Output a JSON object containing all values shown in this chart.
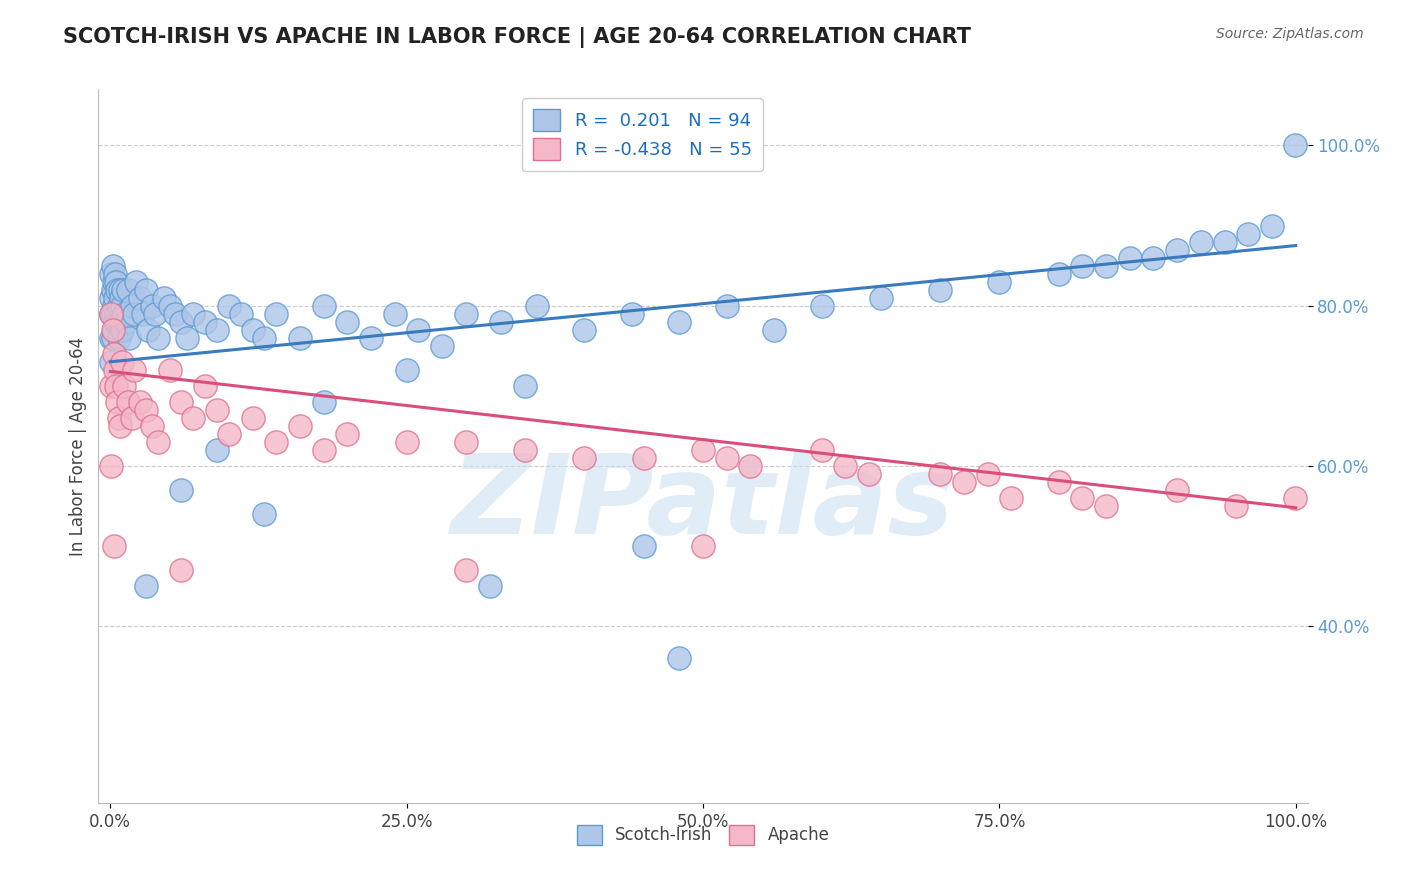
{
  "title": "SCOTCH-IRISH VS APACHE IN LABOR FORCE | AGE 20-64 CORRELATION CHART",
  "source": "Source: ZipAtlas.com",
  "ylabel": "In Labor Force | Age 20-64",
  "xlim": [
    -0.01,
    1.01
  ],
  "ylim": [
    0.18,
    1.07
  ],
  "xticks": [
    0.0,
    0.25,
    0.5,
    0.75,
    1.0
  ],
  "xticklabels": [
    "0.0%",
    "25.0%",
    "50.0%",
    "75.0%",
    "100.0%"
  ],
  "yticks": [
    0.4,
    0.6,
    0.8,
    1.0
  ],
  "yticklabels": [
    "40.0%",
    "60.0%",
    "80.0%",
    "100.0%"
  ],
  "blue_R": 0.201,
  "blue_N": 94,
  "pink_R": -0.438,
  "pink_N": 55,
  "blue_color": "#aec6e8",
  "blue_edge": "#5b9bd5",
  "pink_color": "#f4b8c8",
  "pink_edge": "#e07090",
  "trend_blue": "#3a7abf",
  "trend_pink": "#d94f7a",
  "watermark": "ZIPatlas",
  "watermark_color": "#c8dff0",
  "blue_x": [
    0.001,
    0.001,
    0.001,
    0.001,
    0.001,
    0.002,
    0.002,
    0.002,
    0.002,
    0.003,
    0.003,
    0.003,
    0.004,
    0.004,
    0.004,
    0.005,
    0.005,
    0.006,
    0.006,
    0.007,
    0.007,
    0.008,
    0.008,
    0.009,
    0.01,
    0.01,
    0.011,
    0.012,
    0.013,
    0.015,
    0.016,
    0.018,
    0.02,
    0.022,
    0.025,
    0.028,
    0.03,
    0.032,
    0.035,
    0.038,
    0.04,
    0.045,
    0.05,
    0.055,
    0.06,
    0.065,
    0.07,
    0.08,
    0.09,
    0.1,
    0.11,
    0.12,
    0.13,
    0.14,
    0.16,
    0.18,
    0.2,
    0.22,
    0.24,
    0.26,
    0.28,
    0.3,
    0.33,
    0.36,
    0.4,
    0.44,
    0.48,
    0.52,
    0.56,
    0.6,
    0.65,
    0.7,
    0.75,
    0.8,
    0.82,
    0.84,
    0.86,
    0.88,
    0.9,
    0.92,
    0.94,
    0.96,
    0.98,
    0.999,
    0.18,
    0.25,
    0.35,
    0.45,
    0.48,
    0.03,
    0.06,
    0.13,
    0.09,
    0.32
  ],
  "blue_y": [
    0.84,
    0.81,
    0.79,
    0.76,
    0.73,
    0.85,
    0.82,
    0.79,
    0.76,
    0.83,
    0.8,
    0.77,
    0.84,
    0.81,
    0.78,
    0.83,
    0.79,
    0.82,
    0.78,
    0.8,
    0.76,
    0.82,
    0.78,
    0.81,
    0.8,
    0.77,
    0.82,
    0.79,
    0.78,
    0.82,
    0.76,
    0.8,
    0.79,
    0.83,
    0.81,
    0.79,
    0.82,
    0.77,
    0.8,
    0.79,
    0.76,
    0.81,
    0.8,
    0.79,
    0.78,
    0.76,
    0.79,
    0.78,
    0.77,
    0.8,
    0.79,
    0.77,
    0.76,
    0.79,
    0.76,
    0.8,
    0.78,
    0.76,
    0.79,
    0.77,
    0.75,
    0.79,
    0.78,
    0.8,
    0.77,
    0.79,
    0.78,
    0.8,
    0.77,
    0.8,
    0.81,
    0.82,
    0.83,
    0.84,
    0.85,
    0.85,
    0.86,
    0.86,
    0.87,
    0.88,
    0.88,
    0.89,
    0.9,
    1.0,
    0.68,
    0.72,
    0.7,
    0.5,
    0.36,
    0.45,
    0.57,
    0.54,
    0.62,
    0.45
  ],
  "pink_x": [
    0.001,
    0.001,
    0.002,
    0.003,
    0.004,
    0.005,
    0.006,
    0.007,
    0.008,
    0.01,
    0.012,
    0.015,
    0.018,
    0.02,
    0.025,
    0.03,
    0.035,
    0.04,
    0.05,
    0.06,
    0.07,
    0.08,
    0.09,
    0.1,
    0.12,
    0.14,
    0.16,
    0.18,
    0.2,
    0.25,
    0.3,
    0.35,
    0.4,
    0.45,
    0.5,
    0.52,
    0.54,
    0.6,
    0.62,
    0.64,
    0.7,
    0.72,
    0.74,
    0.76,
    0.8,
    0.82,
    0.84,
    0.9,
    0.95,
    0.999,
    0.001,
    0.003,
    0.06,
    0.3,
    0.5
  ],
  "pink_y": [
    0.79,
    0.7,
    0.77,
    0.74,
    0.72,
    0.7,
    0.68,
    0.66,
    0.65,
    0.73,
    0.7,
    0.68,
    0.66,
    0.72,
    0.68,
    0.67,
    0.65,
    0.63,
    0.72,
    0.68,
    0.66,
    0.7,
    0.67,
    0.64,
    0.66,
    0.63,
    0.65,
    0.62,
    0.64,
    0.63,
    0.63,
    0.62,
    0.61,
    0.61,
    0.62,
    0.61,
    0.6,
    0.62,
    0.6,
    0.59,
    0.59,
    0.58,
    0.59,
    0.56,
    0.58,
    0.56,
    0.55,
    0.57,
    0.55,
    0.56,
    0.6,
    0.5,
    0.47,
    0.47,
    0.5
  ],
  "blue_trend_x": [
    0.0,
    1.0
  ],
  "blue_trend_y_start": 0.73,
  "blue_trend_y_end": 0.875,
  "pink_trend_x": [
    0.0,
    1.0
  ],
  "pink_trend_y_start": 0.718,
  "pink_trend_y_end": 0.548
}
